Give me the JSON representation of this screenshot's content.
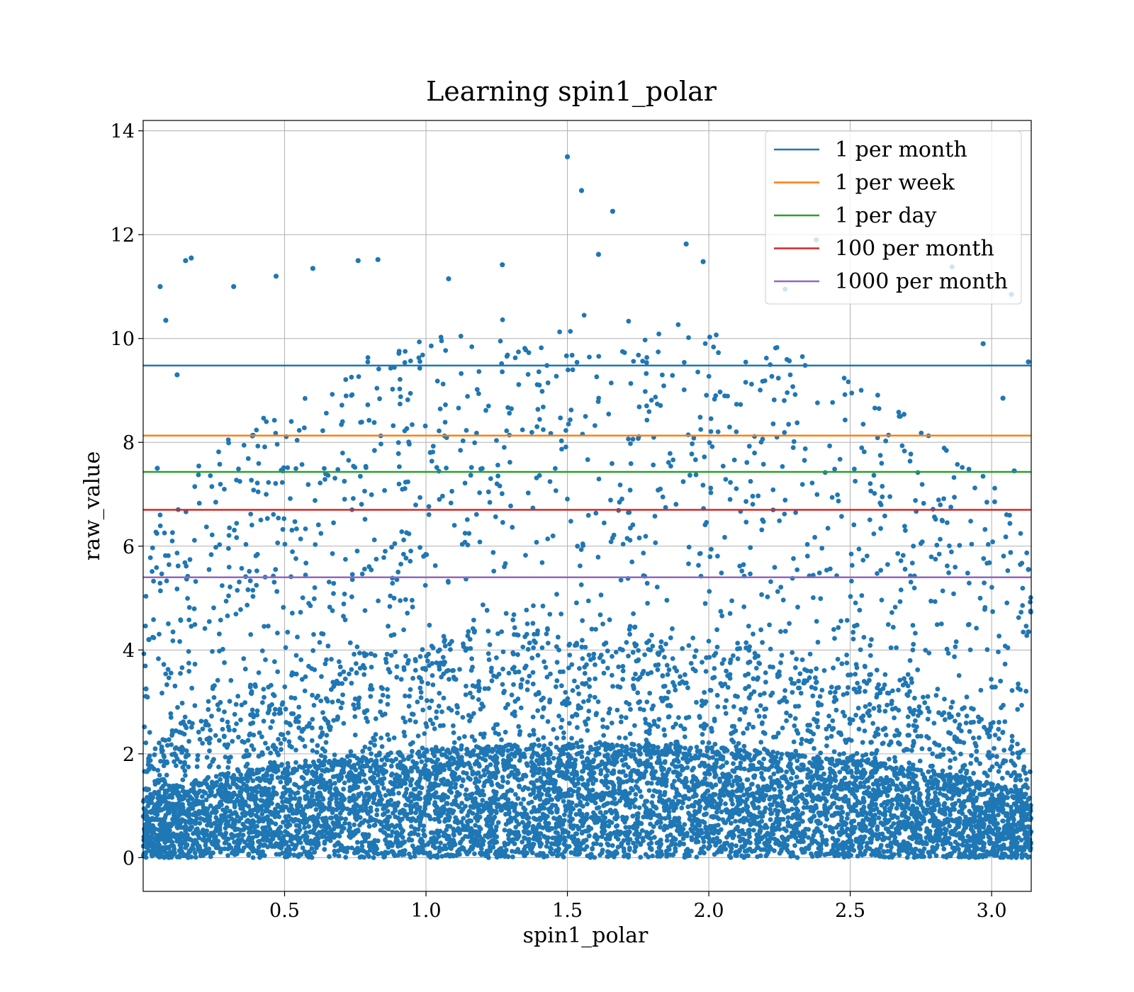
{
  "chart_data": {
    "type": "scatter",
    "title": "Learning spin1_polar",
    "xlabel": "spin1_polar",
    "ylabel": "raw_value",
    "xlim": [
      0.0,
      3.14
    ],
    "ylim": [
      -0.65,
      14.2
    ],
    "xticks": [
      0.5,
      1.0,
      1.5,
      2.0,
      2.5,
      3.0
    ],
    "xtick_labels": [
      "0.5",
      "1.0",
      "1.5",
      "2.0",
      "2.5",
      "3.0"
    ],
    "yticks": [
      0,
      2,
      4,
      6,
      8,
      10,
      12,
      14
    ],
    "ytick_labels": [
      "0",
      "2",
      "4",
      "6",
      "8",
      "10",
      "12",
      "14"
    ],
    "grid": true,
    "legend_position": "top-right",
    "point_color": "#1f77b4",
    "scatter_points": [
      [
        1.5,
        13.5
      ],
      [
        1.55,
        12.85
      ],
      [
        1.66,
        12.45
      ],
      [
        1.92,
        11.82
      ],
      [
        2.38,
        11.9
      ],
      [
        0.15,
        11.5
      ],
      [
        0.17,
        11.55
      ],
      [
        0.06,
        11.0
      ],
      [
        0.08,
        10.35
      ],
      [
        0.76,
        11.5
      ],
      [
        0.83,
        11.52
      ],
      [
        1.27,
        11.42
      ],
      [
        1.61,
        11.62
      ],
      [
        1.98,
        11.48
      ],
      [
        2.86,
        11.38
      ],
      [
        0.32,
        11.0
      ],
      [
        0.47,
        11.2
      ],
      [
        1.08,
        11.15
      ],
      [
        2.27,
        10.95
      ],
      [
        0.6,
        11.35
      ],
      [
        3.07,
        10.85
      ],
      [
        0.02,
        4.2
      ],
      [
        0.01,
        3.25
      ],
      [
        0.02,
        1.7
      ],
      [
        0.01,
        0.85
      ],
      [
        3.13,
        4.35
      ],
      [
        3.12,
        1.4
      ],
      [
        3.12,
        0.05
      ],
      [
        3.13,
        5.55
      ],
      [
        3.13,
        9.55
      ],
      [
        2.97,
        9.9
      ],
      [
        3.04,
        8.85
      ],
      [
        3.08,
        7.45
      ],
      [
        0.12,
        9.3
      ],
      [
        0.05,
        7.5
      ]
    ],
    "series": [
      {
        "name": "1 per month",
        "y": 9.48,
        "color": "#1f77b4"
      },
      {
        "name": "1 per week",
        "y": 8.13,
        "color": "#ff7f0e"
      },
      {
        "name": "1 per day",
        "y": 7.43,
        "color": "#2ca02c"
      },
      {
        "name": "100 per month",
        "y": 6.7,
        "color": "#d62728"
      },
      {
        "name": "1000 per month",
        "y": 5.4,
        "color": "#9467bd"
      }
    ]
  }
}
